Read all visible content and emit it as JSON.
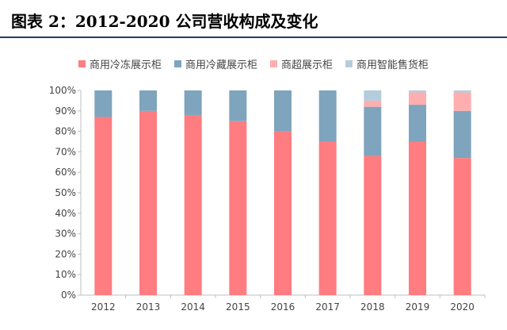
{
  "figure_title": "图表 2：2012-2020 公司营收构成及变化",
  "chart_data": {
    "type": "bar",
    "stacked": true,
    "categories": [
      "2012",
      "2013",
      "2014",
      "2015",
      "2016",
      "2017",
      "2018",
      "2019",
      "2020"
    ],
    "series": [
      {
        "name": "商用冷冻展示柜",
        "color": "#ff7c80",
        "values": [
          87,
          90,
          88,
          85,
          80,
          75,
          68,
          75,
          67
        ]
      },
      {
        "name": "商用冷藏展示柜",
        "color": "#7fa4bd",
        "values": [
          13,
          10,
          12,
          15,
          20,
          25,
          24,
          18,
          23
        ]
      },
      {
        "name": "商超展示柜",
        "color": "#ffaeb0",
        "values": [
          0,
          0,
          0,
          0,
          0,
          0,
          3,
          6,
          9
        ]
      },
      {
        "name": "商用智能售货柜",
        "color": "#b4cddc",
        "values": [
          0,
          0,
          0,
          0,
          0,
          0,
          5,
          1,
          1
        ]
      }
    ],
    "yticks": [
      "0%",
      "10%",
      "20%",
      "30%",
      "40%",
      "50%",
      "60%",
      "70%",
      "80%",
      "90%",
      "100%"
    ],
    "ylim": [
      0,
      100
    ],
    "xlabel": "",
    "ylabel": "",
    "legend_position": "top",
    "grid": false
  }
}
